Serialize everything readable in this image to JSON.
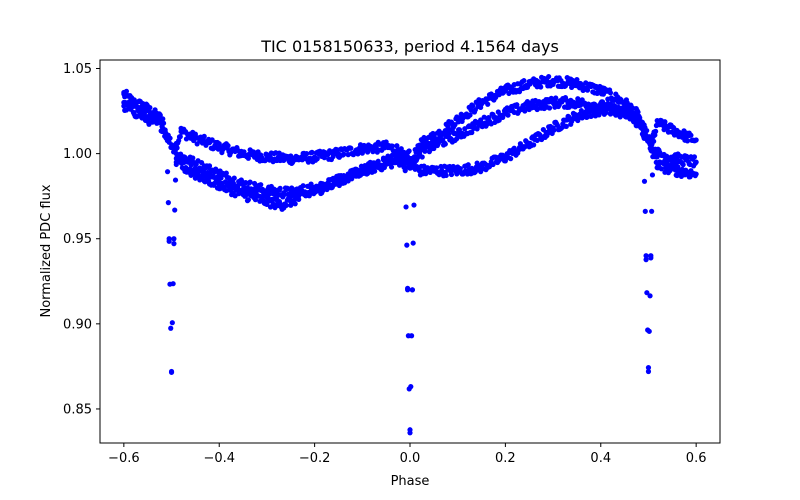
{
  "chart_data": {
    "type": "scatter",
    "title": "TIC 0158150633, period 4.1564 days",
    "xlabel": "Phase",
    "ylabel": "Normalized PDC flux",
    "xlim": [
      -0.65,
      0.65
    ],
    "ylim": [
      0.83,
      1.055
    ],
    "xticks": [
      -0.6,
      -0.4,
      -0.2,
      0.0,
      0.2,
      0.4,
      0.6
    ],
    "xtick_labels": [
      "−0.6",
      "−0.4",
      "−0.2",
      "0.0",
      "0.2",
      "0.4",
      "0.6"
    ],
    "yticks": [
      0.85,
      0.9,
      0.95,
      1.0,
      1.05
    ],
    "ytick_labels": [
      "0.85",
      "0.90",
      "0.95",
      "1.00",
      "1.05"
    ],
    "grid": false,
    "marker_color": "#0000ff",
    "series": [
      {
        "x": [
          -0.6,
          -0.58,
          -0.56,
          -0.54,
          -0.52,
          -0.51,
          -0.505,
          -0.5,
          -0.495,
          -0.49,
          -0.48,
          -0.45,
          -0.4,
          -0.35,
          -0.3,
          -0.25,
          -0.2,
          -0.15,
          -0.1,
          -0.05,
          -0.02,
          -0.01,
          -0.005,
          0.0,
          0.005,
          0.01,
          0.02,
          0.05,
          0.1,
          0.15,
          0.2,
          0.25,
          0.3,
          0.35,
          0.4,
          0.45,
          0.48,
          0.49,
          0.495,
          0.5,
          0.505,
          0.51,
          0.52,
          0.54,
          0.56,
          0.58,
          0.6
        ],
        "y": [
          1.035,
          1.03,
          1.028,
          1.024,
          1.02,
          1.01,
          0.95,
          0.872,
          0.95,
          1.005,
          1.013,
          1.009,
          1.004,
          1.0,
          0.998,
          0.997,
          0.998,
          1.0,
          1.003,
          1.004,
          1.002,
          0.99,
          0.92,
          0.836,
          0.92,
          0.995,
          1.005,
          1.01,
          1.02,
          1.03,
          1.037,
          1.041,
          1.043,
          1.041,
          1.037,
          1.03,
          1.022,
          1.01,
          0.94,
          0.872,
          0.94,
          1.01,
          1.018,
          1.015,
          1.013,
          1.01,
          1.008
        ]
      },
      {
        "x": [
          -0.6,
          -0.56,
          -0.52,
          -0.49,
          -0.45,
          -0.4,
          -0.35,
          -0.3,
          -0.25,
          -0.2,
          -0.15,
          -0.1,
          -0.05,
          -0.02,
          0.02,
          0.05,
          0.1,
          0.15,
          0.2,
          0.25,
          0.3,
          0.35,
          0.4,
          0.45,
          0.48,
          0.52,
          0.56,
          0.6
        ],
        "y": [
          1.028,
          1.022,
          1.016,
          1.0,
          0.994,
          0.988,
          0.982,
          0.978,
          0.977,
          0.98,
          0.984,
          0.99,
          0.994,
          0.996,
          0.99,
          0.99,
          0.99,
          0.992,
          0.998,
          1.006,
          1.015,
          1.022,
          1.026,
          1.024,
          1.02,
          1.0,
          0.997,
          0.995
        ]
      },
      {
        "x": [
          -0.49,
          -0.45,
          -0.4,
          -0.35,
          -0.3,
          -0.27,
          -0.25,
          -0.2,
          -0.15,
          -0.1,
          -0.05,
          -0.02,
          0.02,
          0.05,
          0.1,
          0.15,
          0.2,
          0.25,
          0.3,
          0.35,
          0.4,
          0.45,
          0.48,
          0.52,
          0.56,
          0.6
        ],
        "y": [
          0.995,
          0.988,
          0.982,
          0.976,
          0.972,
          0.97,
          0.972,
          0.978,
          0.984,
          0.99,
          0.996,
          0.998,
          1.0,
          1.005,
          1.011,
          1.018,
          1.024,
          1.028,
          1.03,
          1.03,
          1.028,
          1.024,
          1.018,
          0.993,
          0.99,
          0.988
        ]
      }
    ]
  }
}
